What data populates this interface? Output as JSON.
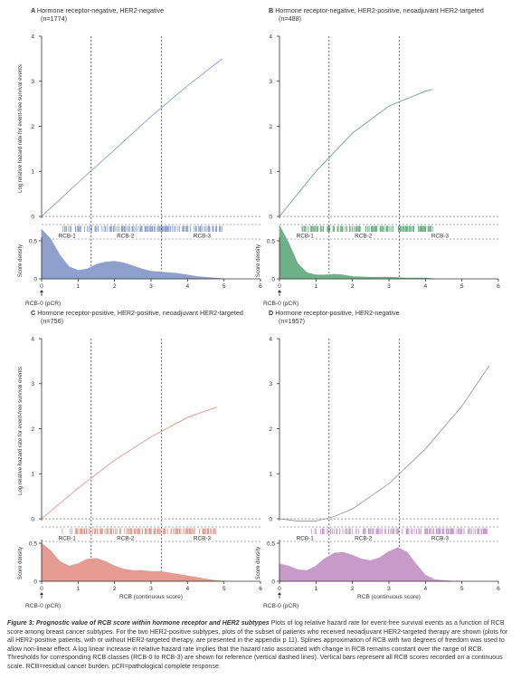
{
  "figure": {
    "y_axis_label": "Log relative hazard rate for event-free survival events",
    "density_label": "Score density",
    "x_axis_label": "RCB (continuous score)",
    "pcr_label": "RCB-0 (pCR)",
    "rcb_class_labels": [
      "RCB-1",
      "RCB-2",
      "RCB-3"
    ],
    "colors": {
      "line": "#8a8a8a",
      "axis": "#333333"
    }
  },
  "chart_data": [
    {
      "type": "line",
      "panel": "A",
      "title": "Hormone receptor-negative, HER2-negative",
      "n": "(n=1774)",
      "color": "#8fa0cd",
      "curve_color": "#8c9bd0",
      "ylim": [
        -0.1,
        4
      ],
      "yticks": [
        0,
        1,
        2,
        3,
        4
      ],
      "xlim": [
        0,
        6
      ],
      "xticks": [
        0,
        1,
        2,
        3,
        4,
        5,
        6
      ],
      "thresholds": [
        1.36,
        3.28
      ],
      "hazard": {
        "x": [
          0,
          1,
          2,
          3,
          4,
          4.95
        ],
        "y": [
          0,
          0.75,
          1.48,
          2.22,
          2.9,
          3.5
        ]
      },
      "density": {
        "x": [
          0,
          0.25,
          0.5,
          0.75,
          1,
          1.25,
          1.5,
          1.75,
          2,
          2.25,
          2.5,
          2.75,
          3,
          3.25,
          3.5,
          3.75,
          4,
          4.25,
          4.5,
          4.75,
          5
        ],
        "y": [
          0.65,
          0.52,
          0.31,
          0.16,
          0.11,
          0.13,
          0.19,
          0.22,
          0.23,
          0.21,
          0.17,
          0.13,
          0.1,
          0.09,
          0.08,
          0.07,
          0.05,
          0.03,
          0.02,
          0.01,
          0
        ]
      },
      "density_ylim": [
        0,
        0.5
      ],
      "density_yticks": [
        0,
        0.5
      ]
    },
    {
      "type": "line",
      "panel": "B",
      "title": "Hormone receptor-negative, HER2-positive, neoadjuvant HER2-targeted",
      "n": "(n=488)",
      "color": "#6fb089",
      "curve_color": "#6aa689",
      "ylim": [
        -0.1,
        4
      ],
      "yticks": [
        0,
        1,
        2,
        3,
        4
      ],
      "xlim": [
        0,
        6
      ],
      "xticks": [
        0,
        1,
        2,
        3,
        4,
        5,
        6
      ],
      "thresholds": [
        1.36,
        3.28
      ],
      "hazard": {
        "x": [
          0,
          1,
          2,
          3,
          4,
          4.2
        ],
        "y": [
          0,
          1.0,
          1.85,
          2.45,
          2.78,
          2.82
        ]
      },
      "density": {
        "x": [
          0,
          0.25,
          0.5,
          0.75,
          1,
          1.25,
          1.5,
          1.75,
          2,
          2.5,
          3,
          3.5,
          4,
          4.25
        ],
        "y": [
          0.7,
          0.47,
          0.2,
          0.08,
          0.05,
          0.05,
          0.06,
          0.05,
          0.03,
          0.02,
          0.02,
          0.01,
          0.01,
          0
        ]
      },
      "density_ylim": [
        0,
        0.5
      ],
      "density_yticks": [
        0,
        0.5
      ]
    },
    {
      "type": "line",
      "panel": "C",
      "title": "Hormone receptor-positive, HER2-positive, neoadjuvant HER2-targeted",
      "n": "(n=756)",
      "color": "#e59a92",
      "curve_color": "#e0948d",
      "ylim": [
        -0.1,
        4
      ],
      "yticks": [
        0,
        1,
        2,
        3,
        4
      ],
      "xlim": [
        0,
        6
      ],
      "xticks": [
        0,
        1,
        2,
        3,
        4,
        5,
        6
      ],
      "thresholds": [
        1.36,
        3.28
      ],
      "hazard": {
        "x": [
          0,
          1,
          2,
          3,
          4,
          4.8
        ],
        "y": [
          0,
          0.68,
          1.3,
          1.82,
          2.25,
          2.48
        ]
      },
      "density": {
        "x": [
          0,
          0.25,
          0.5,
          0.75,
          1,
          1.25,
          1.5,
          1.75,
          2,
          2.25,
          2.5,
          2.75,
          3,
          3.25,
          3.5,
          3.75,
          4,
          4.25,
          4.5,
          4.75,
          5
        ],
        "y": [
          0.5,
          0.4,
          0.26,
          0.2,
          0.23,
          0.29,
          0.3,
          0.26,
          0.2,
          0.16,
          0.14,
          0.14,
          0.13,
          0.13,
          0.11,
          0.09,
          0.07,
          0.05,
          0.03,
          0.01,
          0
        ]
      },
      "density_ylim": [
        0,
        0.5
      ],
      "density_yticks": [
        0,
        0.5
      ]
    },
    {
      "type": "line",
      "panel": "D",
      "title": "Hormone receptor-positive, HER2-negative",
      "n": "(n=1957)",
      "color": "#c79ac9",
      "curve_color": "#9a9a9a",
      "ylim": [
        -0.1,
        4
      ],
      "yticks": [
        0,
        1,
        2,
        3,
        4
      ],
      "xlim": [
        0,
        6
      ],
      "xticks": [
        0,
        1,
        2,
        3,
        4,
        5,
        6
      ],
      "thresholds": [
        1.36,
        3.28
      ],
      "hazard": {
        "x": [
          0,
          0.5,
          1,
          1.5,
          2,
          3,
          4,
          5,
          5.75
        ],
        "y": [
          0,
          -0.05,
          -0.05,
          0.05,
          0.22,
          0.78,
          1.55,
          2.5,
          3.4
        ]
      },
      "density": {
        "x": [
          0,
          0.25,
          0.5,
          0.75,
          1,
          1.25,
          1.5,
          1.75,
          2,
          2.25,
          2.5,
          2.75,
          3,
          3.25,
          3.5,
          3.75,
          4,
          4.25,
          4.5,
          4.75,
          5
        ],
        "y": [
          0.23,
          0.2,
          0.15,
          0.14,
          0.2,
          0.3,
          0.37,
          0.38,
          0.34,
          0.29,
          0.27,
          0.31,
          0.39,
          0.44,
          0.38,
          0.22,
          0.08,
          0.02,
          0.01,
          0,
          0
        ]
      },
      "density_ylim": [
        0,
        0.5
      ],
      "density_yticks": [
        0,
        0.5
      ]
    }
  ],
  "caption": {
    "title": "Figure 3: Prognostic value of RCB score within hormone receptor and HER2 subtypes",
    "text": "Plots of log relative hazard rate for event-free survival events as a function of RCB score among breast cancer subtypes. For the two HER2-positive subtypes, plots of the subset of patients who received neoadjuvant HER2-targeted therapy are shown (plots for all HER2-positive patients, with or without HER2-targeted therapy, are presented in the appendix p 11). Splines approximation of RCB with two degrees of freedom was used to allow non-linear effect. A log linear increase in relative hazard rate implies that the hazard ratio associated with change in RCB remains constant over the range of RCB. Thresholds for corresponding RCB classes (RCB-0 to RCB-3) are shown for reference (vertical dashed lines). Vertical bars represent all RCB scores recorded on a continuous scale. RCB=residual cancer burden. pCR=pathological complete response."
  }
}
